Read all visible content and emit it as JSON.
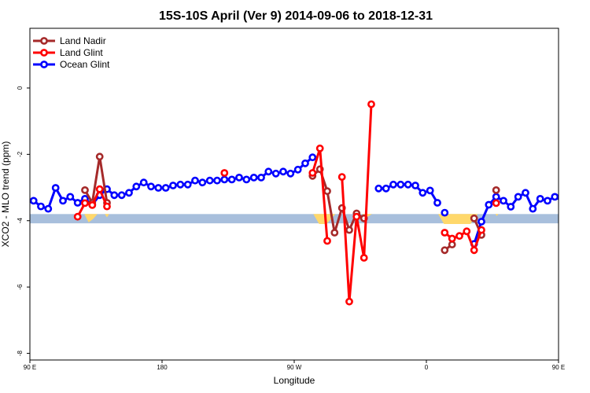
{
  "chart_data": {
    "type": "line",
    "title": "15S-10S April (Ver 9)   2014-09-06 to 2018-12-31",
    "xlabel": "Longitude",
    "ylabel": "XCO2 - MLO trend (ppm)",
    "xlim": [
      90,
      450
    ],
    "ylim": [
      -8.2,
      1.8
    ],
    "x_ticks": [
      {
        "value": 90,
        "label": "90 E"
      },
      {
        "value": 180,
        "label": "180"
      },
      {
        "value": 270,
        "label": "90 W"
      },
      {
        "value": 360,
        "label": "0"
      },
      {
        "value": 450,
        "label": "90 E"
      },
      {
        "value": 540,
        "label": "180"
      }
    ],
    "y_ticks": [
      {
        "value": 0,
        "label": "0"
      },
      {
        "value": -2,
        "label": "-2"
      },
      {
        "value": -4,
        "label": "-4"
      },
      {
        "value": -6,
        "label": "-6"
      },
      {
        "value": -8,
        "label": "-8"
      }
    ],
    "x_ticks_full_range": [
      90,
      540
    ],
    "legend_position": "top-left",
    "colors": {
      "land_nadir": "#a52a2a",
      "land_glint": "#ff0000",
      "ocean_glint": "#0000ff",
      "band": "#a8bfdc",
      "area": "#ffd86b"
    },
    "band": {
      "y_min": -4.08,
      "y_max": -3.8
    },
    "series": [
      {
        "name": "Land Nadir",
        "color": "#a52a2a",
        "segments": [
          {
            "x": [
              127.5,
              132.5,
              137.5,
              142.5
            ],
            "y": [
              -3.08,
              -3.46,
              -2.07,
              -3.46
            ]
          },
          {
            "x": [
              282.5,
              287.5,
              292.5,
              297.5,
              302.5,
              307.5,
              312.5,
              317.5
            ],
            "y": [
              -2.65,
              -2.45,
              -3.11,
              -4.36,
              -3.62,
              -4.28,
              -3.78,
              -3.93
            ]
          },
          {
            "x": [
              372.5,
              377.5
            ],
            "y": [
              -4.89,
              -4.72
            ]
          },
          {
            "x": [
              392.5,
              397.5
            ],
            "y": [
              -3.93,
              -4.43
            ]
          },
          {
            "x": [
              407.5
            ],
            "y": [
              -3.08
            ]
          },
          {
            "x": [
              487.5,
              492.5,
              497.5,
              502.5
            ],
            "y": [
              -3.08,
              -3.46,
              -2.07,
              -3.46
            ]
          }
        ]
      },
      {
        "name": "Land Glint",
        "color": "#ff0000",
        "segments": [
          {
            "x": [
              122.5,
              127.5,
              132.5,
              137.5,
              142.5
            ],
            "y": [
              -3.88,
              -3.47,
              -3.53,
              -3.05,
              -3.57
            ]
          },
          {
            "x": [
              222.5
            ],
            "y": [
              -2.56
            ]
          },
          {
            "x": [
              282.5,
              287.5,
              292.5
            ],
            "y": [
              -2.56,
              -1.82,
              -4.61
            ]
          },
          {
            "x": [
              302.5,
              307.5,
              312.5,
              317.5,
              322.5
            ],
            "y": [
              -2.68,
              -6.44,
              -3.88,
              -5.12,
              -0.49
            ]
          },
          {
            "x": [
              372.5,
              377.5,
              382.5,
              387.5,
              392.5,
              397.5
            ],
            "y": [
              -4.36,
              -4.54,
              -4.46,
              -4.32,
              -4.89,
              -4.28
            ]
          },
          {
            "x": [
              407.5
            ],
            "y": [
              -3.47
            ]
          },
          {
            "x": [
              482.5,
              487.5,
              492.5,
              497.5,
              502.5
            ],
            "y": [
              -3.88,
              -3.47,
              -3.53,
              -3.05,
              -3.57
            ]
          }
        ]
      },
      {
        "name": "Ocean Glint",
        "color": "#0000ff",
        "segments": [
          {
            "x": [
              92.5,
              97.5,
              102.5,
              107.5,
              112.5,
              117.5,
              122.5,
              127.5,
              132.5,
              137.5,
              142.5,
              147.5,
              152.5,
              157.5,
              162.5,
              167.5,
              172.5,
              177.5,
              182.5,
              187.5,
              192.5,
              197.5,
              202.5,
              207.5,
              212.5,
              217.5,
              222.5,
              227.5,
              232.5,
              237.5,
              242.5,
              247.5,
              252.5,
              257.5,
              262.5,
              267.5,
              272.5,
              277.5,
              282.5
            ],
            "y": [
              -3.4,
              -3.57,
              -3.64,
              -3.01,
              -3.4,
              -3.28,
              -3.46,
              -3.34,
              -3.52,
              -3.23,
              -3.05,
              -3.23,
              -3.23,
              -3.16,
              -2.97,
              -2.85,
              -2.97,
              -3.01,
              -3.01,
              -2.94,
              -2.91,
              -2.91,
              -2.79,
              -2.85,
              -2.79,
              -2.79,
              -2.76,
              -2.76,
              -2.7,
              -2.76,
              -2.7,
              -2.7,
              -2.52,
              -2.58,
              -2.52,
              -2.58,
              -2.46,
              -2.27,
              -2.09
            ]
          },
          {
            "x": [
              327.5,
              332.5,
              337.5,
              342.5,
              347.5,
              352.5,
              357.5,
              362.5,
              367.5
            ],
            "y": [
              -3.03,
              -3.03,
              -2.91,
              -2.91,
              -2.91,
              -2.94,
              -3.16,
              -3.09,
              -3.46
            ]
          },
          {
            "x": [
              372.5
            ],
            "y": [
              -3.76
            ]
          },
          {
            "x": [
              392.5,
              397.5,
              402.5,
              407.5,
              412.5,
              417.5,
              422.5,
              427.5,
              432.5,
              437.5,
              442.5,
              447.5,
              452.5,
              457.5,
              462.5,
              467.5,
              472.5,
              477.5,
              482.5,
              487.5,
              492.5,
              497.5
            ],
            "y": [
              -4.7,
              -4.03,
              -3.52,
              -3.28,
              -3.4,
              -3.58,
              -3.28,
              -3.16,
              -3.64,
              -3.34,
              -3.4,
              -3.28,
              -3.4,
              -3.55,
              -3.64,
              -3.01,
              -3.4,
              -3.28,
              -3.46,
              -3.34,
              -3.52,
              -3.23
            ]
          }
        ]
      }
    ],
    "area_fill": {
      "baseline": -3.8,
      "points": [
        [
          127,
          -3.8
        ],
        [
          130,
          -4.05
        ],
        [
          133,
          -3.95
        ],
        [
          136,
          -3.8
        ],
        [
          141,
          -3.8
        ],
        [
          142.5,
          -3.9
        ],
        [
          144,
          -3.8
        ],
        [
          283,
          -3.8
        ],
        [
          287,
          -4.1
        ],
        [
          292,
          -4.1
        ],
        [
          298,
          -3.8
        ],
        [
          316,
          -3.8
        ],
        [
          320,
          -3.88
        ],
        [
          323,
          -3.8
        ],
        [
          368,
          -3.8
        ],
        [
          372,
          -4.1
        ],
        [
          390,
          -4.1
        ],
        [
          395,
          -3.8
        ],
        [
          407,
          -3.8
        ],
        [
          408,
          -3.86
        ],
        [
          409,
          -3.8
        ],
        [
          487,
          -3.8
        ],
        [
          490,
          -4.05
        ],
        [
          493,
          -3.95
        ],
        [
          496,
          -3.8
        ],
        [
          501,
          -3.8
        ],
        [
          502.5,
          -3.9
        ],
        [
          504,
          -3.8
        ]
      ]
    }
  }
}
